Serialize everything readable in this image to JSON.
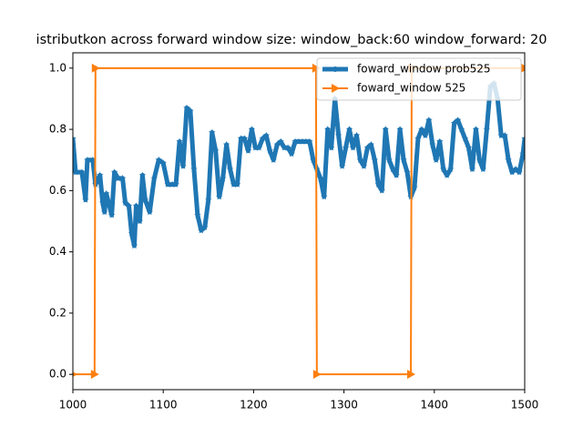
{
  "chart_data": {
    "type": "line",
    "title": "istributkon across forward window size: window_back:60 window_forward: 20",
    "xlim": [
      1000,
      1500
    ],
    "ylim": [
      -0.05,
      1.05
    ],
    "xticks": [
      1000,
      1100,
      1200,
      1300,
      1400,
      1500
    ],
    "yticks": [
      {
        "value": 0,
        "label": "0.0"
      },
      {
        "value": 0.2,
        "label": "0.2"
      },
      {
        "value": 0.4,
        "label": "0.4"
      },
      {
        "value": 0.6,
        "label": "0.6"
      },
      {
        "value": 0.8,
        "label": "0.8"
      },
      {
        "value": 1,
        "label": "1.0"
      }
    ],
    "grid": false,
    "legend": "upper right",
    "series": [
      {
        "name": "foward_window prob525",
        "color": "#1f77b4",
        "marker": "star",
        "width": 5,
        "x": [
          1000,
          1003,
          1010,
          1014,
          1016,
          1022,
          1025,
          1030,
          1033,
          1035,
          1037,
          1043,
          1046,
          1050,
          1055,
          1058,
          1062,
          1065,
          1068,
          1070,
          1074,
          1077,
          1080,
          1085,
          1090,
          1095,
          1100,
          1105,
          1110,
          1114,
          1118,
          1122,
          1126,
          1130,
          1134,
          1138,
          1142,
          1146,
          1150,
          1154,
          1158,
          1162,
          1166,
          1170,
          1174,
          1178,
          1182,
          1186,
          1190,
          1194,
          1198,
          1202,
          1206,
          1210,
          1214,
          1218,
          1222,
          1226,
          1230,
          1234,
          1238,
          1242,
          1246,
          1250,
          1254,
          1258,
          1262,
          1266,
          1270,
          1274,
          1278,
          1282,
          1286,
          1290,
          1294,
          1298,
          1302,
          1306,
          1310,
          1314,
          1318,
          1322,
          1326,
          1330,
          1334,
          1338,
          1342,
          1346,
          1350,
          1354,
          1358,
          1362,
          1366,
          1370,
          1374,
          1378,
          1382,
          1386,
          1390,
          1394,
          1398,
          1402,
          1406,
          1410,
          1414,
          1418,
          1422,
          1426,
          1430,
          1434,
          1438,
          1442,
          1446,
          1450,
          1454,
          1458,
          1462,
          1466,
          1470,
          1474,
          1478,
          1482,
          1486,
          1490,
          1494,
          1498,
          1500
        ],
        "values": [
          0.77,
          0.66,
          0.66,
          0.57,
          0.7,
          0.7,
          0.62,
          0.65,
          0.56,
          0.53,
          0.59,
          0.52,
          0.66,
          0.64,
          0.64,
          0.56,
          0.55,
          0.46,
          0.42,
          0.55,
          0.5,
          0.65,
          0.57,
          0.53,
          0.64,
          0.7,
          0.69,
          0.62,
          0.62,
          0.62,
          0.76,
          0.68,
          0.87,
          0.86,
          0.67,
          0.52,
          0.47,
          0.48,
          0.57,
          0.79,
          0.73,
          0.58,
          0.64,
          0.75,
          0.67,
          0.62,
          0.62,
          0.77,
          0.77,
          0.73,
          0.8,
          0.74,
          0.74,
          0.77,
          0.78,
          0.73,
          0.7,
          0.75,
          0.76,
          0.74,
          0.74,
          0.72,
          0.76,
          0.76,
          0.76,
          0.76,
          0.76,
          0.7,
          0.67,
          0.64,
          0.58,
          0.8,
          0.74,
          0.9,
          0.78,
          0.68,
          0.74,
          0.8,
          0.74,
          0.78,
          0.7,
          0.68,
          0.74,
          0.75,
          0.7,
          0.62,
          0.6,
          0.8,
          0.7,
          0.67,
          0.65,
          0.8,
          0.7,
          0.66,
          0.58,
          0.61,
          0.77,
          0.8,
          0.78,
          0.83,
          0.75,
          0.7,
          0.76,
          0.67,
          0.65,
          0.67,
          0.82,
          0.83,
          0.8,
          0.77,
          0.74,
          0.67,
          0.8,
          0.7,
          0.67,
          0.8,
          0.94,
          0.95,
          0.9,
          0.78,
          0.78,
          0.7,
          0.66,
          0.67,
          0.66,
          0.72,
          0.77
        ]
      },
      {
        "name": "foward_window 525",
        "color": "#ff7f0e",
        "marker": "triangle-right",
        "width": 2,
        "x": [
          1000,
          1024,
          1025,
          1269,
          1270,
          1374,
          1375,
          1500
        ],
        "values": [
          0,
          0,
          1,
          1,
          0,
          0,
          1,
          1
        ]
      }
    ]
  }
}
